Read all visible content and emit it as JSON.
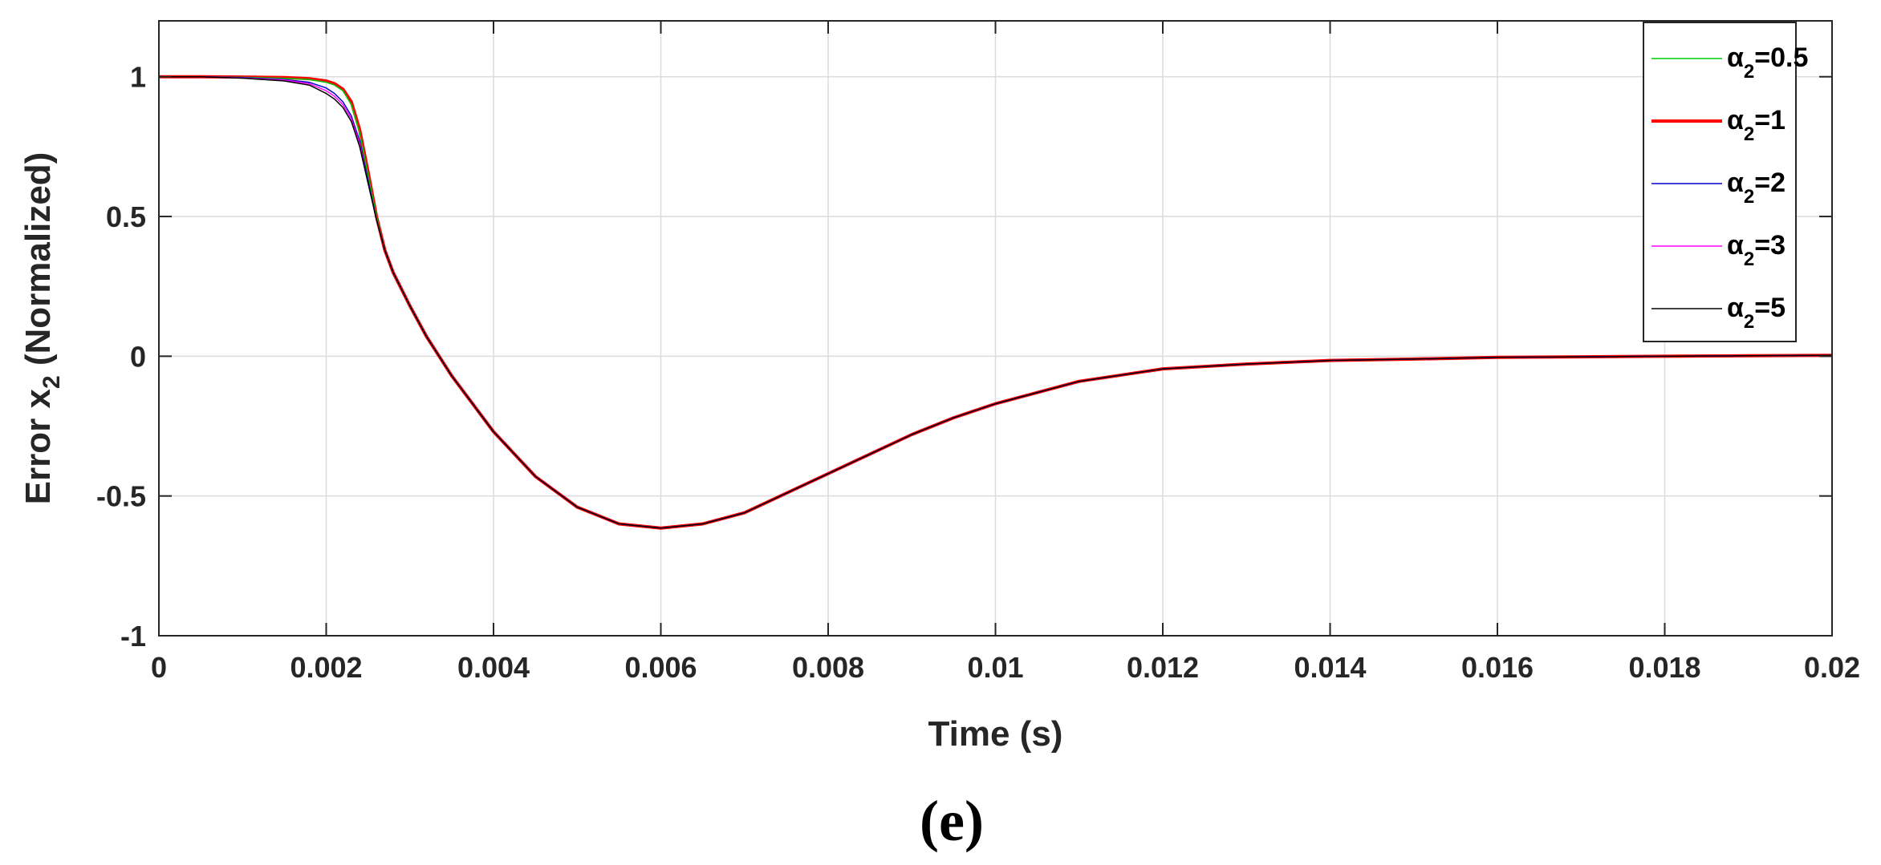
{
  "chart_data": {
    "type": "line",
    "xlabel": "Time (s)",
    "ylabel": {
      "main": "Error x",
      "sub": "2",
      "suffix": " (Normalized)"
    },
    "xlim": [
      0,
      0.02
    ],
    "ylim": [
      -1,
      1.2
    ],
    "x_ticks": [
      0,
      0.002,
      0.004,
      0.006,
      0.008,
      0.01,
      0.012,
      0.014,
      0.016,
      0.018,
      0.02
    ],
    "x_tick_labels": [
      "0",
      "0.002",
      "0.004",
      "0.006",
      "0.008",
      "0.01",
      "0.012",
      "0.014",
      "0.016",
      "0.018",
      "0.02"
    ],
    "y_ticks": [
      -1,
      -0.5,
      0,
      0.5,
      1
    ],
    "y_tick_labels": [
      "-1",
      "-0.5",
      "0",
      "0.5",
      "1"
    ],
    "grid": true,
    "legend_position": "top-right",
    "x": [
      0,
      0.0005,
      0.001,
      0.0015,
      0.0018,
      0.002,
      0.0021,
      0.0022,
      0.0023,
      0.0024,
      0.0025,
      0.0026,
      0.0027,
      0.0028,
      0.003,
      0.0032,
      0.0035,
      0.004,
      0.0045,
      0.005,
      0.0055,
      0.006,
      0.0065,
      0.007,
      0.0075,
      0.008,
      0.0085,
      0.009,
      0.0095,
      0.01,
      0.011,
      0.012,
      0.013,
      0.014,
      0.015,
      0.016,
      0.017,
      0.018,
      0.019,
      0.02
    ],
    "series": [
      {
        "name_main": "α",
        "name_sub": "2",
        "name_suffix": "=0.5",
        "color": "#00cc00",
        "width": 1.5,
        "values": [
          1,
          1,
          0.998,
          0.994,
          0.99,
          0.98,
          0.97,
          0.95,
          0.9,
          0.8,
          0.65,
          0.5,
          0.38,
          0.3,
          0.18,
          0.07,
          -0.07,
          -0.27,
          -0.43,
          -0.54,
          -0.6,
          -0.615,
          -0.6,
          -0.56,
          -0.49,
          -0.42,
          -0.35,
          -0.28,
          -0.22,
          -0.17,
          -0.09,
          -0.045,
          -0.028,
          -0.015,
          -0.01,
          -0.004,
          -0.002,
          0.0,
          0.002,
          0.003
        ]
      },
      {
        "name_main": "α",
        "name_sub": "2",
        "name_suffix": "=1",
        "color": "#ff0000",
        "width": 4,
        "values": [
          1,
          1,
          0.999,
          0.997,
          0.993,
          0.985,
          0.975,
          0.955,
          0.91,
          0.81,
          0.66,
          0.5,
          0.38,
          0.3,
          0.18,
          0.07,
          -0.07,
          -0.27,
          -0.43,
          -0.54,
          -0.6,
          -0.615,
          -0.6,
          -0.56,
          -0.49,
          -0.42,
          -0.35,
          -0.28,
          -0.22,
          -0.17,
          -0.09,
          -0.045,
          -0.028,
          -0.015,
          -0.01,
          -0.004,
          -0.002,
          0.0,
          0.002,
          0.003
        ]
      },
      {
        "name_main": "α",
        "name_sub": "2",
        "name_suffix": "=2",
        "color": "#0000cc",
        "width": 1.5,
        "values": [
          1,
          1,
          0.997,
          0.99,
          0.98,
          0.96,
          0.94,
          0.91,
          0.86,
          0.77,
          0.63,
          0.49,
          0.38,
          0.3,
          0.18,
          0.07,
          -0.07,
          -0.27,
          -0.43,
          -0.54,
          -0.6,
          -0.615,
          -0.6,
          -0.56,
          -0.49,
          -0.42,
          -0.35,
          -0.28,
          -0.22,
          -0.17,
          -0.09,
          -0.045,
          -0.028,
          -0.015,
          -0.01,
          -0.004,
          -0.002,
          0.0,
          0.002,
          0.003
        ]
      },
      {
        "name_main": "α",
        "name_sub": "2",
        "name_suffix": "=3",
        "color": "#ff00ff",
        "width": 1.5,
        "values": [
          1,
          1,
          0.996,
          0.988,
          0.975,
          0.95,
          0.93,
          0.9,
          0.85,
          0.76,
          0.62,
          0.49,
          0.38,
          0.3,
          0.18,
          0.07,
          -0.07,
          -0.27,
          -0.43,
          -0.54,
          -0.6,
          -0.615,
          -0.6,
          -0.56,
          -0.49,
          -0.42,
          -0.35,
          -0.28,
          -0.22,
          -0.17,
          -0.09,
          -0.045,
          -0.028,
          -0.015,
          -0.01,
          -0.004,
          -0.002,
          0.0,
          0.002,
          0.003
        ]
      },
      {
        "name_main": "α",
        "name_sub": "2",
        "name_suffix": "=5",
        "color": "#000000",
        "width": 1.5,
        "values": [
          1,
          1,
          0.995,
          0.985,
          0.97,
          0.94,
          0.92,
          0.89,
          0.84,
          0.75,
          0.62,
          0.49,
          0.38,
          0.3,
          0.18,
          0.07,
          -0.07,
          -0.27,
          -0.43,
          -0.54,
          -0.6,
          -0.615,
          -0.6,
          -0.56,
          -0.49,
          -0.42,
          -0.35,
          -0.28,
          -0.22,
          -0.17,
          -0.09,
          -0.045,
          -0.028,
          -0.015,
          -0.01,
          -0.004,
          -0.002,
          0.0,
          0.002,
          0.003
        ]
      }
    ]
  },
  "panel_label": "(e)"
}
